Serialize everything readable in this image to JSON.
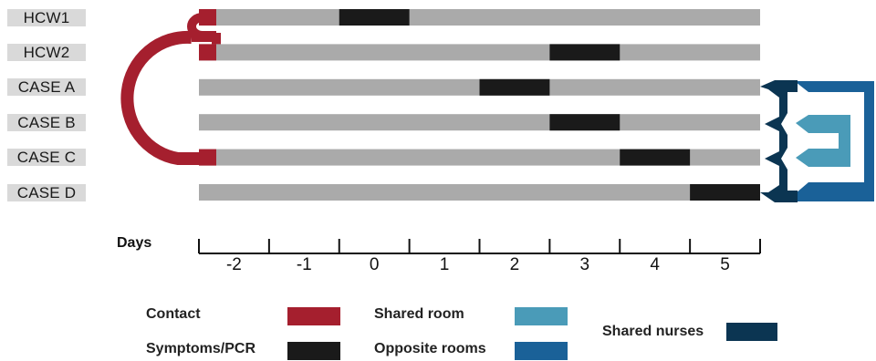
{
  "rows": [
    {
      "label": "HCW1",
      "symptom_day": 0
    },
    {
      "label": "HCW2",
      "symptom_day": 3
    },
    {
      "label": "CASE A",
      "symptom_day": 2
    },
    {
      "label": "CASE B",
      "symptom_day": 3
    },
    {
      "label": "CASE C",
      "symptom_day": 4
    },
    {
      "label": "CASE D",
      "symptom_day": 5
    }
  ],
  "axis": {
    "title": "Days",
    "ticks": [
      "-2",
      "-1",
      "0",
      "1",
      "2",
      "3",
      "4",
      "5"
    ]
  },
  "links": {
    "contact": [
      "HCW1",
      "HCW2",
      "CASE C"
    ],
    "shared_room": [
      "CASE B",
      "CASE C"
    ],
    "opposite_rooms": [
      "CASE A",
      "CASE D"
    ],
    "shared_nurses": [
      "CASE A",
      "CASE B",
      "CASE C",
      "CASE D"
    ]
  },
  "legend": {
    "contact": "Contact",
    "symptoms": "Symptoms/PCR",
    "shared_room": "Shared room",
    "opposite_rooms": "Opposite rooms",
    "shared_nurses": "Shared nurses"
  },
  "colors": {
    "contact": "#a51f2e",
    "symptoms": "#1a1a1a",
    "shared_room": "#4a9bb8",
    "opposite_rooms": "#1a6198",
    "shared_nurses": "#0b3552",
    "timeline": "#aaaaaa"
  }
}
